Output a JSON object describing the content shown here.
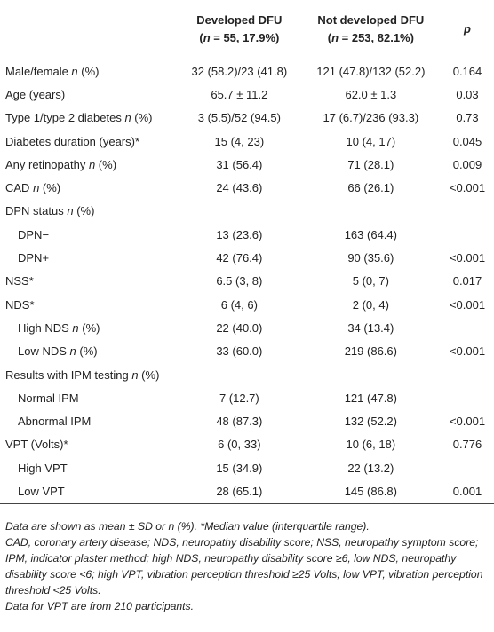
{
  "table": {
    "header": [
      {
        "line1": "Developed DFU",
        "line2": [
          "(",
          "n",
          " = 55, 17.9%)"
        ]
      },
      {
        "line1": "Not developed DFU",
        "line2": [
          "(",
          "n",
          " = 253, 82.1%)"
        ]
      },
      {
        "line1": [
          "",
          "p"
        ]
      }
    ],
    "rows": [
      {
        "label": [
          "Male/female ",
          "n",
          " (%)"
        ],
        "cells": [
          "32 (58.2)/23 (41.8)",
          "121 (47.8)/132 (52.2)",
          "0.164"
        ]
      },
      {
        "label": [
          "Age (years)"
        ],
        "cells": [
          "65.7 ± 11.2",
          "62.0 ± 1.3",
          "0.03"
        ]
      },
      {
        "label": [
          "Type 1/type 2 diabetes ",
          "n",
          " (%)"
        ],
        "cells": [
          "3 (5.5)/52 (94.5)",
          "17 (6.7)/236 (93.3)",
          "0.73"
        ]
      },
      {
        "label": [
          "Diabetes duration (years)*"
        ],
        "cells": [
          "15 (4, 23)",
          "10 (4, 17)",
          "0.045"
        ]
      },
      {
        "label": [
          "Any retinopathy ",
          "n",
          " (%)"
        ],
        "cells": [
          "31 (56.4)",
          "71 (28.1)",
          "0.009"
        ]
      },
      {
        "label": [
          "CAD ",
          "n",
          " (%)"
        ],
        "cells": [
          "24 (43.6)",
          "66 (26.1)",
          "<0.001"
        ]
      },
      {
        "label": [
          "DPN status ",
          "n",
          " (%)"
        ],
        "cells": [
          null,
          null,
          null
        ]
      },
      {
        "label": [
          "DPN−"
        ],
        "indent": true,
        "cells": [
          "13 (23.6)",
          "163 (64.4)",
          null
        ]
      },
      {
        "label": [
          "DPN+"
        ],
        "indent": true,
        "cells": [
          "42 (76.4)",
          "90 (35.6)",
          "<0.001"
        ]
      },
      {
        "label": [
          "NSS*"
        ],
        "cells": [
          "6.5 (3, 8)",
          "5 (0, 7)",
          "0.017"
        ]
      },
      {
        "label": [
          "NDS*"
        ],
        "cells": [
          "6 (4, 6)",
          "2 (0, 4)",
          "<0.001"
        ]
      },
      {
        "label": [
          "High NDS ",
          "n",
          " (%)"
        ],
        "indent": true,
        "cells": [
          "22 (40.0)",
          "34 (13.4)",
          null
        ]
      },
      {
        "label": [
          "Low NDS ",
          "n",
          " (%)"
        ],
        "indent": true,
        "cells": [
          "33 (60.0)",
          "219 (86.6)",
          "<0.001"
        ]
      },
      {
        "label": [
          "Results with IPM testing ",
          "n",
          " (%)"
        ],
        "cells": [
          null,
          null,
          null
        ]
      },
      {
        "label": [
          "Normal IPM"
        ],
        "indent": true,
        "cells": [
          "7 (12.7)",
          "121 (47.8)",
          null
        ]
      },
      {
        "label": [
          "Abnormal IPM"
        ],
        "indent": true,
        "cells": [
          "48 (87.3)",
          "132 (52.2)",
          "<0.001"
        ]
      },
      {
        "label": [
          "VPT (Volts)*"
        ],
        "cells": [
          "6 (0, 33)",
          "10 (6, 18)",
          "0.776"
        ]
      },
      {
        "label": [
          "High VPT"
        ],
        "indent": true,
        "cells": [
          "15 (34.9)",
          "22 (13.2)",
          null
        ]
      },
      {
        "label": [
          "Low VPT"
        ],
        "indent": true,
        "cells": [
          "28 (65.1)",
          "145 (86.8)",
          "0.001"
        ]
      }
    ]
  },
  "footnotes": [
    "Data are shown as mean ± SD or n (%). *Median value (interquartile range).",
    "CAD, coronary artery disease; NDS, neuropathy disability score; NSS, neuropathy symptom score; IPM, indicator plaster method; high NDS, neuropathy disability score ≥6, low NDS, neuropathy disability score <6; high VPT, vibration perception threshold ≥25 Volts; low VPT, vibration perception threshold <25 Volts.",
    "Data for VPT are from 210 participants."
  ]
}
